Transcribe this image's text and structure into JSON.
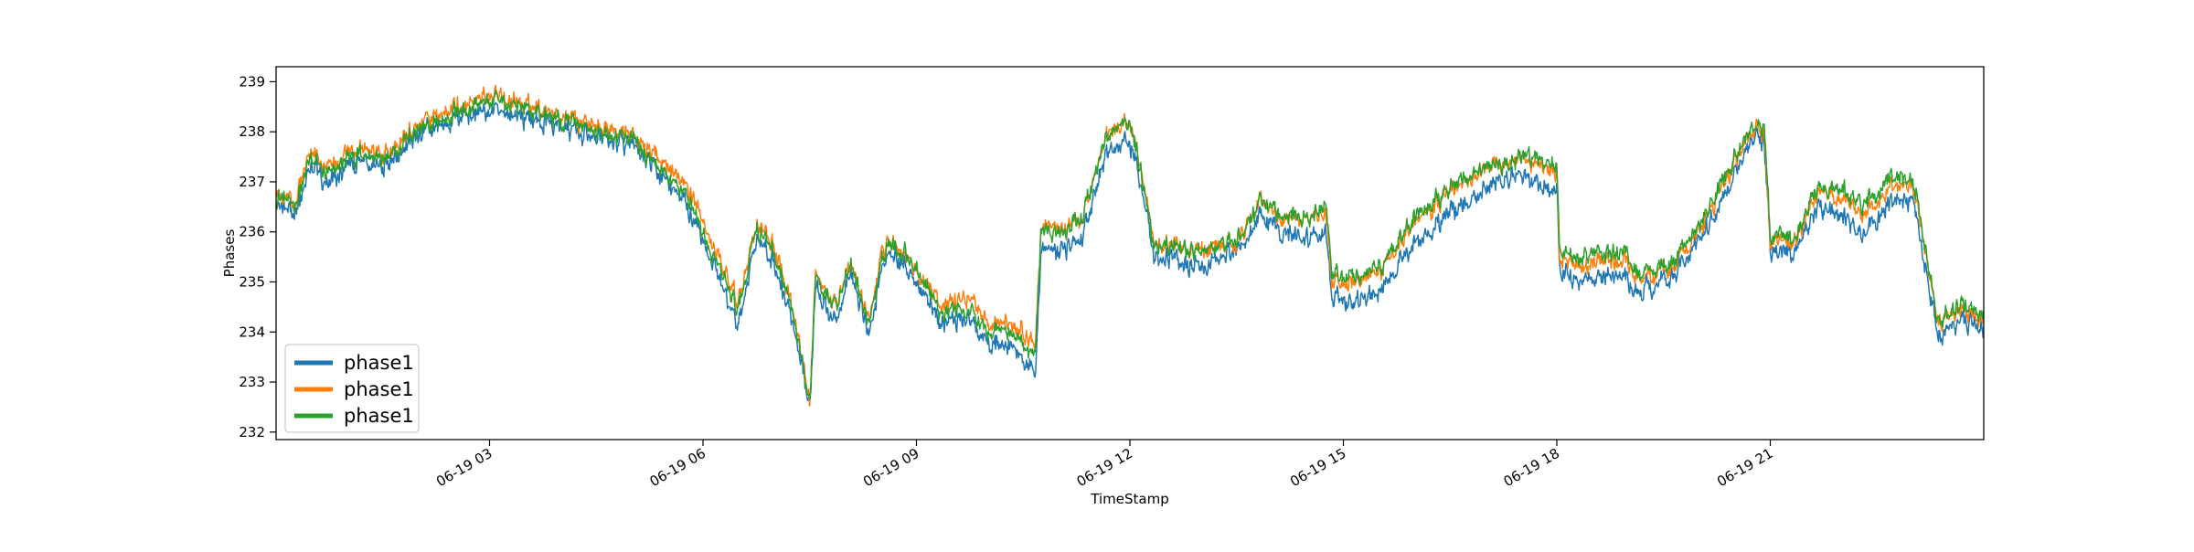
{
  "chart_data": {
    "type": "line",
    "title": "",
    "xlabel": "TimeStamp",
    "ylabel": "Phases",
    "x_range": [
      "2023-06-19 00:00",
      "2023-06-20 00:00"
    ],
    "ylim": [
      231.85,
      239.3
    ],
    "grid": false,
    "legend_placement": "lower-left",
    "yticks": [
      {
        "value": 232,
        "label": "232"
      },
      {
        "value": 233,
        "label": "233"
      },
      {
        "value": 234,
        "label": "234"
      },
      {
        "value": 235,
        "label": "235"
      },
      {
        "value": 236,
        "label": "236"
      },
      {
        "value": 237,
        "label": "237"
      },
      {
        "value": 238,
        "label": "238"
      },
      {
        "value": 239,
        "label": "239"
      }
    ],
    "xticks": [
      {
        "value": "2023-06-19 03:00",
        "label": "06-19 03"
      },
      {
        "value": "2023-06-19 06:00",
        "label": "06-19 06"
      },
      {
        "value": "2023-06-19 09:00",
        "label": "06-19 09"
      },
      {
        "value": "2023-06-19 12:00",
        "label": "06-19 12"
      },
      {
        "value": "2023-06-19 15:00",
        "label": "06-19 15"
      },
      {
        "value": "2023-06-19 18:00",
        "label": "06-19 18"
      },
      {
        "value": "2023-06-19 21:00",
        "label": "06-19 21"
      }
    ],
    "noise_amplitude": [
      0.35,
      0.32,
      0.32
    ],
    "series": [
      {
        "name": "phase1",
        "color": "#1f77b4",
        "x": [
          "2023-06-19 00:00",
          "2023-06-19 00:15",
          "2023-06-19 00:30",
          "2023-06-19 00:45",
          "2023-06-19 01:00",
          "2023-06-19 01:30",
          "2023-06-19 02:00",
          "2023-06-19 02:30",
          "2023-06-19 03:00",
          "2023-06-19 03:30",
          "2023-06-19 04:00",
          "2023-06-19 04:30",
          "2023-06-19 05:00",
          "2023-06-19 05:30",
          "2023-06-19 05:50",
          "2023-06-19 06:10",
          "2023-06-19 06:30",
          "2023-06-19 06:45",
          "2023-06-19 07:00",
          "2023-06-19 07:15",
          "2023-06-19 07:30",
          "2023-06-19 07:35",
          "2023-06-19 07:50",
          "2023-06-19 08:05",
          "2023-06-19 08:20",
          "2023-06-19 08:35",
          "2023-06-19 08:50",
          "2023-06-19 09:05",
          "2023-06-19 09:20",
          "2023-06-19 09:40",
          "2023-06-19 10:00",
          "2023-06-19 10:20",
          "2023-06-19 10:40",
          "2023-06-19 10:45",
          "2023-06-19 11:00",
          "2023-06-19 11:20",
          "2023-06-19 11:40",
          "2023-06-19 12:00",
          "2023-06-19 12:15",
          "2023-06-19 12:20",
          "2023-06-19 12:40",
          "2023-06-19 13:00",
          "2023-06-19 13:30",
          "2023-06-19 13:50",
          "2023-06-19 14:10",
          "2023-06-19 14:30",
          "2023-06-19 14:45",
          "2023-06-19 14:50",
          "2023-06-19 15:10",
          "2023-06-19 15:30",
          "2023-06-19 16:00",
          "2023-06-19 16:20",
          "2023-06-19 16:40",
          "2023-06-19 17:00",
          "2023-06-19 17:20",
          "2023-06-19 17:40",
          "2023-06-19 18:00",
          "2023-06-19 18:02",
          "2023-06-19 18:20",
          "2023-06-19 18:40",
          "2023-06-19 19:00",
          "2023-06-19 19:05",
          "2023-06-19 19:20",
          "2023-06-19 19:40",
          "2023-06-19 20:00",
          "2023-06-19 20:20",
          "2023-06-19 20:40",
          "2023-06-19 20:55",
          "2023-06-19 21:00",
          "2023-06-19 21:20",
          "2023-06-19 21:40",
          "2023-06-19 22:00",
          "2023-06-19 22:20",
          "2023-06-19 22:40",
          "2023-06-19 23:00",
          "2023-06-19 23:05",
          "2023-06-19 23:20",
          "2023-06-19 23:40",
          "2023-06-20 00:00"
        ],
        "y": [
          236.6,
          236.3,
          237.3,
          236.9,
          237.3,
          237.4,
          237.9,
          238.3,
          238.4,
          238.3,
          238.1,
          237.9,
          237.7,
          237.0,
          236.4,
          235.2,
          234.1,
          235.9,
          235.4,
          234.2,
          232.4,
          235.1,
          234.2,
          235.1,
          234.0,
          235.6,
          235.4,
          234.9,
          234.2,
          234.3,
          233.9,
          233.7,
          233.1,
          235.6,
          235.6,
          235.9,
          237.6,
          237.8,
          236.4,
          235.5,
          235.4,
          235.3,
          235.6,
          236.3,
          236.0,
          235.9,
          236.0,
          234.6,
          234.6,
          234.8,
          235.8,
          236.2,
          236.6,
          236.9,
          237.1,
          236.9,
          236.9,
          235.2,
          235.0,
          235.1,
          235.1,
          234.8,
          234.9,
          235.2,
          235.8,
          236.6,
          237.7,
          237.8,
          235.6,
          235.6,
          236.5,
          236.3,
          235.9,
          236.6,
          236.7,
          236.2,
          234.0,
          234.2,
          234.1
        ]
      },
      {
        "name": "phase1",
        "color": "#ff7f0e",
        "x": [
          "2023-06-19 00:00",
          "2023-06-19 00:15",
          "2023-06-19 00:30",
          "2023-06-19 00:45",
          "2023-06-19 01:00",
          "2023-06-19 01:30",
          "2023-06-19 02:00",
          "2023-06-19 02:30",
          "2023-06-19 03:00",
          "2023-06-19 03:30",
          "2023-06-19 04:00",
          "2023-06-19 04:30",
          "2023-06-19 05:00",
          "2023-06-19 05:30",
          "2023-06-19 05:50",
          "2023-06-19 06:10",
          "2023-06-19 06:30",
          "2023-06-19 06:45",
          "2023-06-19 07:00",
          "2023-06-19 07:15",
          "2023-06-19 07:30",
          "2023-06-19 07:35",
          "2023-06-19 07:50",
          "2023-06-19 08:05",
          "2023-06-19 08:20",
          "2023-06-19 08:35",
          "2023-06-19 08:50",
          "2023-06-19 09:05",
          "2023-06-19 09:20",
          "2023-06-19 09:40",
          "2023-06-19 10:00",
          "2023-06-19 10:20",
          "2023-06-19 10:40",
          "2023-06-19 10:45",
          "2023-06-19 11:00",
          "2023-06-19 11:20",
          "2023-06-19 11:40",
          "2023-06-19 12:00",
          "2023-06-19 12:15",
          "2023-06-19 12:20",
          "2023-06-19 12:40",
          "2023-06-19 13:00",
          "2023-06-19 13:30",
          "2023-06-19 13:50",
          "2023-06-19 14:10",
          "2023-06-19 14:30",
          "2023-06-19 14:45",
          "2023-06-19 14:50",
          "2023-06-19 15:10",
          "2023-06-19 15:30",
          "2023-06-19 16:00",
          "2023-06-19 16:20",
          "2023-06-19 16:40",
          "2023-06-19 17:00",
          "2023-06-19 17:20",
          "2023-06-19 17:40",
          "2023-06-19 18:00",
          "2023-06-19 18:02",
          "2023-06-19 18:20",
          "2023-06-19 18:40",
          "2023-06-19 19:00",
          "2023-06-19 19:05",
          "2023-06-19 19:20",
          "2023-06-19 19:40",
          "2023-06-19 20:00",
          "2023-06-19 20:20",
          "2023-06-19 20:40",
          "2023-06-19 20:55",
          "2023-06-19 21:00",
          "2023-06-19 21:20",
          "2023-06-19 21:40",
          "2023-06-19 22:00",
          "2023-06-19 22:20",
          "2023-06-19 22:40",
          "2023-06-19 23:00",
          "2023-06-19 23:05",
          "2023-06-19 23:20",
          "2023-06-19 23:40",
          "2023-06-20 00:00"
        ],
        "y": [
          236.8,
          236.6,
          237.6,
          237.2,
          237.6,
          237.6,
          238.1,
          238.5,
          238.7,
          238.6,
          238.3,
          238.1,
          237.9,
          237.3,
          236.8,
          235.6,
          234.6,
          236.2,
          235.7,
          234.5,
          232.5,
          235.3,
          234.6,
          235.3,
          234.3,
          235.9,
          235.6,
          235.1,
          234.6,
          234.7,
          234.3,
          234.2,
          233.7,
          236.1,
          236.0,
          236.3,
          237.9,
          238.2,
          236.7,
          235.8,
          235.7,
          235.6,
          235.8,
          236.6,
          236.2,
          236.3,
          236.4,
          235.0,
          235.0,
          235.2,
          236.2,
          236.6,
          237.0,
          237.3,
          237.4,
          237.3,
          237.3,
          235.4,
          235.3,
          235.4,
          235.4,
          235.1,
          235.1,
          235.4,
          236.0,
          236.9,
          237.9,
          238.0,
          235.8,
          235.8,
          236.8,
          236.6,
          236.3,
          236.9,
          237.0,
          236.5,
          234.3,
          234.4,
          234.3
        ]
      },
      {
        "name": "phase1",
        "color": "#2ca02c",
        "x": [
          "2023-06-19 00:00",
          "2023-06-19 00:15",
          "2023-06-19 00:30",
          "2023-06-19 00:45",
          "2023-06-19 01:00",
          "2023-06-19 01:30",
          "2023-06-19 02:00",
          "2023-06-19 02:30",
          "2023-06-19 03:00",
          "2023-06-19 03:30",
          "2023-06-19 04:00",
          "2023-06-19 04:30",
          "2023-06-19 05:00",
          "2023-06-19 05:30",
          "2023-06-19 05:50",
          "2023-06-19 06:10",
          "2023-06-19 06:30",
          "2023-06-19 06:45",
          "2023-06-19 07:00",
          "2023-06-19 07:15",
          "2023-06-19 07:30",
          "2023-06-19 07:35",
          "2023-06-19 07:50",
          "2023-06-19 08:05",
          "2023-06-19 08:20",
          "2023-06-19 08:35",
          "2023-06-19 08:50",
          "2023-06-19 09:05",
          "2023-06-19 09:20",
          "2023-06-19 09:40",
          "2023-06-19 10:00",
          "2023-06-19 10:20",
          "2023-06-19 10:40",
          "2023-06-19 10:45",
          "2023-06-19 11:00",
          "2023-06-19 11:20",
          "2023-06-19 11:40",
          "2023-06-19 12:00",
          "2023-06-19 12:15",
          "2023-06-19 12:20",
          "2023-06-19 12:40",
          "2023-06-19 13:00",
          "2023-06-19 13:30",
          "2023-06-19 13:50",
          "2023-06-19 14:10",
          "2023-06-19 14:30",
          "2023-06-19 14:45",
          "2023-06-19 14:50",
          "2023-06-19 15:10",
          "2023-06-19 15:30",
          "2023-06-19 16:00",
          "2023-06-19 16:20",
          "2023-06-19 16:40",
          "2023-06-19 17:00",
          "2023-06-19 17:20",
          "2023-06-19 17:40",
          "2023-06-19 18:00",
          "2023-06-19 18:02",
          "2023-06-19 18:20",
          "2023-06-19 18:40",
          "2023-06-19 19:00",
          "2023-06-19 19:05",
          "2023-06-19 19:20",
          "2023-06-19 19:40",
          "2023-06-19 20:00",
          "2023-06-19 20:20",
          "2023-06-19 20:40",
          "2023-06-19 20:55",
          "2023-06-19 21:00",
          "2023-06-19 21:20",
          "2023-06-19 21:40",
          "2023-06-19 22:00",
          "2023-06-19 22:20",
          "2023-06-19 22:40",
          "2023-06-19 23:00",
          "2023-06-19 23:05",
          "2023-06-19 23:20",
          "2023-06-19 23:40",
          "2023-06-20 00:00"
        ],
        "y": [
          236.7,
          236.5,
          237.5,
          237.1,
          237.5,
          237.5,
          238.0,
          238.4,
          238.6,
          238.5,
          238.2,
          238.0,
          237.8,
          237.1,
          236.6,
          235.4,
          234.4,
          236.1,
          235.6,
          234.4,
          232.5,
          235.2,
          234.5,
          235.3,
          234.2,
          235.8,
          235.6,
          235.1,
          234.4,
          234.5,
          234.1,
          234.0,
          233.5,
          236.0,
          235.9,
          236.3,
          237.9,
          238.2,
          236.6,
          235.7,
          235.7,
          235.6,
          235.8,
          236.6,
          236.3,
          236.3,
          236.5,
          235.1,
          235.1,
          235.3,
          236.3,
          236.7,
          237.1,
          237.3,
          237.4,
          237.4,
          237.4,
          235.6,
          235.5,
          235.6,
          235.6,
          235.2,
          235.2,
          235.5,
          236.1,
          237.0,
          238.0,
          238.1,
          235.9,
          235.9,
          236.9,
          236.8,
          236.5,
          237.1,
          237.1,
          236.6,
          234.3,
          234.5,
          234.4
        ]
      }
    ]
  }
}
